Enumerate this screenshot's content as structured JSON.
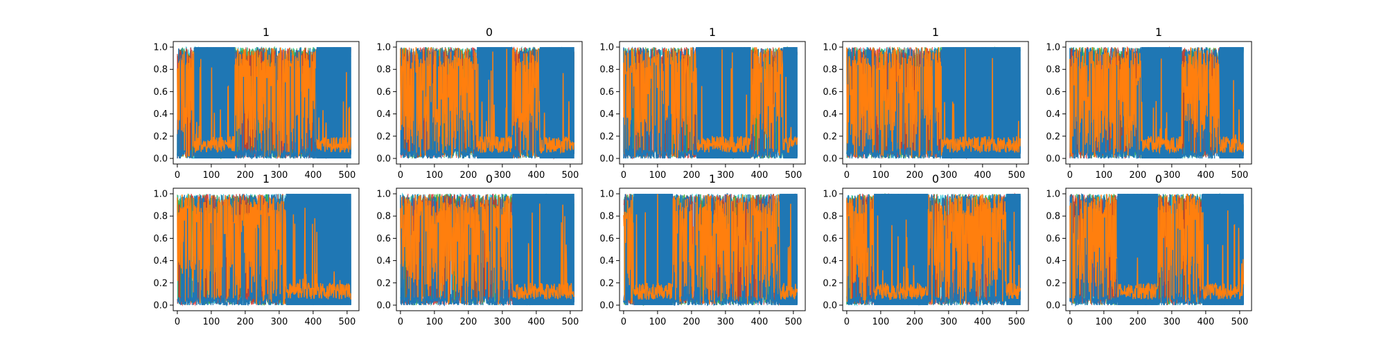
{
  "figure": {
    "background": "#ffffff"
  },
  "palette": [
    "#1f77b4",
    "#ff7f0e",
    "#2ca02c",
    "#d62728",
    "#9467bd",
    "#8c564b",
    "#e377c2",
    "#7f7f7f",
    "#bcbd22",
    "#17becf"
  ],
  "chart_data": [
    {
      "type": "line",
      "title": "1",
      "xlim": [
        -12,
        535
      ],
      "ylim": [
        -0.05,
        1.05
      ],
      "xticks": [
        0,
        100,
        200,
        300,
        400,
        500
      ],
      "yticks": [
        0.0,
        0.2,
        0.4,
        0.6,
        0.8,
        1.0
      ],
      "xticklabels": [
        "0",
        "100",
        "200",
        "300",
        "400",
        "500"
      ],
      "yticklabels": [
        "0.0",
        "0.2",
        "0.4",
        "0.6",
        "0.8",
        "1.0"
      ],
      "grid": false,
      "description_points": 512,
      "segments": [
        {
          "start": 0,
          "end": 50,
          "dominant": "orange"
        },
        {
          "start": 50,
          "end": 170,
          "dominant": "blue"
        },
        {
          "start": 170,
          "end": 410,
          "dominant": "orange"
        },
        {
          "start": 410,
          "end": 512,
          "dominant": "blue"
        }
      ]
    },
    {
      "type": "line",
      "title": "0",
      "xlim": [
        -12,
        535
      ],
      "ylim": [
        -0.05,
        1.05
      ],
      "xticks": [
        0,
        100,
        200,
        300,
        400,
        500
      ],
      "yticks": [
        0.0,
        0.2,
        0.4,
        0.6,
        0.8,
        1.0
      ],
      "xticklabels": [
        "0",
        "100",
        "200",
        "300",
        "400",
        "500"
      ],
      "yticklabels": [
        "0.0",
        "0.2",
        "0.4",
        "0.6",
        "0.8",
        "1.0"
      ],
      "grid": false,
      "description_points": 512,
      "segments": [
        {
          "start": 0,
          "end": 225,
          "dominant": "orange"
        },
        {
          "start": 225,
          "end": 330,
          "dominant": "blue"
        },
        {
          "start": 330,
          "end": 410,
          "dominant": "orange"
        },
        {
          "start": 410,
          "end": 512,
          "dominant": "blue"
        }
      ]
    },
    {
      "type": "line",
      "title": "1",
      "xlim": [
        -12,
        535
      ],
      "ylim": [
        -0.05,
        1.05
      ],
      "xticks": [
        0,
        100,
        200,
        300,
        400,
        500
      ],
      "yticks": [
        0.0,
        0.2,
        0.4,
        0.6,
        0.8,
        1.0
      ],
      "xticklabels": [
        "0",
        "100",
        "200",
        "300",
        "400",
        "500"
      ],
      "yticklabels": [
        "0.0",
        "0.2",
        "0.4",
        "0.6",
        "0.8",
        "1.0"
      ],
      "grid": false,
      "description_points": 512,
      "segments": [
        {
          "start": 0,
          "end": 215,
          "dominant": "orange"
        },
        {
          "start": 215,
          "end": 375,
          "dominant": "blue"
        },
        {
          "start": 375,
          "end": 470,
          "dominant": "orange"
        },
        {
          "start": 470,
          "end": 512,
          "dominant": "blue"
        }
      ]
    },
    {
      "type": "line",
      "title": "1",
      "xlim": [
        -12,
        535
      ],
      "ylim": [
        -0.05,
        1.05
      ],
      "xticks": [
        0,
        100,
        200,
        300,
        400,
        500
      ],
      "yticks": [
        0.0,
        0.2,
        0.4,
        0.6,
        0.8,
        1.0
      ],
      "xticklabels": [
        "0",
        "100",
        "200",
        "300",
        "400",
        "500"
      ],
      "yticklabels": [
        "0.0",
        "0.2",
        "0.4",
        "0.6",
        "0.8",
        "1.0"
      ],
      "grid": false,
      "description_points": 512,
      "segments": [
        {
          "start": 0,
          "end": 280,
          "dominant": "orange"
        },
        {
          "start": 280,
          "end": 512,
          "dominant": "blue"
        }
      ]
    },
    {
      "type": "line",
      "title": "1",
      "xlim": [
        -12,
        535
      ],
      "ylim": [
        -0.05,
        1.05
      ],
      "xticks": [
        0,
        100,
        200,
        300,
        400,
        500
      ],
      "yticks": [
        0.0,
        0.2,
        0.4,
        0.6,
        0.8,
        1.0
      ],
      "xticklabels": [
        "0",
        "100",
        "200",
        "300",
        "400",
        "500"
      ],
      "yticklabels": [
        "0.0",
        "0.2",
        "0.4",
        "0.6",
        "0.8",
        "1.0"
      ],
      "grid": false,
      "description_points": 512,
      "segments": [
        {
          "start": 0,
          "end": 210,
          "dominant": "orange"
        },
        {
          "start": 210,
          "end": 330,
          "dominant": "blue"
        },
        {
          "start": 330,
          "end": 440,
          "dominant": "orange"
        },
        {
          "start": 440,
          "end": 512,
          "dominant": "blue"
        }
      ]
    },
    {
      "type": "line",
      "title": "1",
      "xlim": [
        -12,
        535
      ],
      "ylim": [
        -0.05,
        1.05
      ],
      "xticks": [
        0,
        100,
        200,
        300,
        400,
        500
      ],
      "yticks": [
        0.0,
        0.2,
        0.4,
        0.6,
        0.8,
        1.0
      ],
      "xticklabels": [
        "0",
        "100",
        "200",
        "300",
        "400",
        "500"
      ],
      "yticklabels": [
        "0.0",
        "0.2",
        "0.4",
        "0.6",
        "0.8",
        "1.0"
      ],
      "grid": false,
      "description_points": 512,
      "segments": [
        {
          "start": 0,
          "end": 320,
          "dominant": "orange"
        },
        {
          "start": 320,
          "end": 512,
          "dominant": "blue"
        }
      ]
    },
    {
      "type": "line",
      "title": "0",
      "xlim": [
        -12,
        535
      ],
      "ylim": [
        -0.05,
        1.05
      ],
      "xticks": [
        0,
        100,
        200,
        300,
        400,
        500
      ],
      "yticks": [
        0.0,
        0.2,
        0.4,
        0.6,
        0.8,
        1.0
      ],
      "xticklabels": [
        "0",
        "100",
        "200",
        "300",
        "400",
        "500"
      ],
      "yticklabels": [
        "0.0",
        "0.2",
        "0.4",
        "0.6",
        "0.8",
        "1.0"
      ],
      "grid": false,
      "description_points": 512,
      "segments": [
        {
          "start": 0,
          "end": 330,
          "dominant": "orange"
        },
        {
          "start": 330,
          "end": 512,
          "dominant": "blue"
        }
      ]
    },
    {
      "type": "line",
      "title": "1",
      "xlim": [
        -12,
        535
      ],
      "ylim": [
        -0.05,
        1.05
      ],
      "xticks": [
        0,
        100,
        200,
        300,
        400,
        500
      ],
      "yticks": [
        0.0,
        0.2,
        0.4,
        0.6,
        0.8,
        1.0
      ],
      "xticklabels": [
        "0",
        "100",
        "200",
        "300",
        "400",
        "500"
      ],
      "yticklabels": [
        "0.0",
        "0.2",
        "0.4",
        "0.6",
        "0.8",
        "1.0"
      ],
      "grid": false,
      "description_points": 512,
      "segments": [
        {
          "start": 0,
          "end": 30,
          "dominant": "orange"
        },
        {
          "start": 30,
          "end": 145,
          "dominant": "blue"
        },
        {
          "start": 145,
          "end": 460,
          "dominant": "orange"
        },
        {
          "start": 460,
          "end": 512,
          "dominant": "blue"
        }
      ]
    },
    {
      "type": "line",
      "title": "0",
      "xlim": [
        -12,
        535
      ],
      "ylim": [
        -0.05,
        1.05
      ],
      "xticks": [
        0,
        100,
        200,
        300,
        400,
        500
      ],
      "yticks": [
        0.0,
        0.2,
        0.4,
        0.6,
        0.8,
        1.0
      ],
      "xticklabels": [
        "0",
        "100",
        "200",
        "300",
        "400",
        "500"
      ],
      "yticklabels": [
        "0.0",
        "0.2",
        "0.4",
        "0.6",
        "0.8",
        "1.0"
      ],
      "grid": false,
      "description_points": 512,
      "segments": [
        {
          "start": 0,
          "end": 80,
          "dominant": "orange"
        },
        {
          "start": 80,
          "end": 240,
          "dominant": "blue"
        },
        {
          "start": 240,
          "end": 470,
          "dominant": "orange"
        },
        {
          "start": 470,
          "end": 512,
          "dominant": "blue"
        }
      ]
    },
    {
      "type": "line",
      "title": "0",
      "xlim": [
        -12,
        535
      ],
      "ylim": [
        -0.05,
        1.05
      ],
      "xticks": [
        0,
        100,
        200,
        300,
        400,
        500
      ],
      "yticks": [
        0.0,
        0.2,
        0.4,
        0.6,
        0.8,
        1.0
      ],
      "xticklabels": [
        "0",
        "100",
        "200",
        "300",
        "400",
        "500"
      ],
      "yticklabels": [
        "0.0",
        "0.2",
        "0.4",
        "0.6",
        "0.8",
        "1.0"
      ],
      "grid": false,
      "description_points": 512,
      "segments": [
        {
          "start": 0,
          "end": 140,
          "dominant": "orange"
        },
        {
          "start": 140,
          "end": 260,
          "dominant": "blue"
        },
        {
          "start": 260,
          "end": 390,
          "dominant": "orange"
        },
        {
          "start": 390,
          "end": 512,
          "dominant": "blue"
        }
      ]
    }
  ]
}
